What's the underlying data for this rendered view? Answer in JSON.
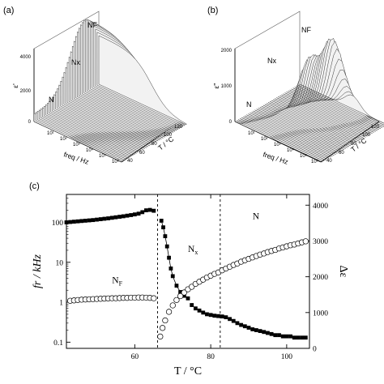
{
  "panels": [
    {
      "label": "(a)",
      "ylabel": "ε'",
      "z_ticks": [
        "0",
        "2000",
        "4000"
      ],
      "freq_axis": {
        "label": "freq / Hz",
        "ticks": [
          "10¹",
          "10²",
          "10³",
          "10⁴",
          "10⁵",
          "10⁶"
        ]
      },
      "temp_axis": {
        "label": "T / °C",
        "ticks": [
          "40",
          "60",
          "80",
          "100",
          "120"
        ]
      },
      "phase_labels": [
        "N",
        "Nx",
        "NF"
      ],
      "surface": {
        "peak": 4200,
        "valleys": 1
      }
    },
    {
      "label": "(b)",
      "ylabel": "ε''",
      "z_ticks": [
        "0",
        "1000",
        "2000"
      ],
      "freq_axis": {
        "label": "freq / Hz",
        "ticks": [
          "10¹",
          "10²",
          "10³",
          "10⁴",
          "10⁵",
          "10⁶"
        ]
      },
      "temp_axis": {
        "label": "T / °C",
        "ticks": [
          "40",
          "60",
          "80",
          "100",
          "120"
        ]
      },
      "phase_labels": [
        "N",
        "Nx",
        "NF"
      ],
      "surface": {
        "peak": 2300,
        "valleys": 2
      }
    }
  ],
  "chart_data": {
    "label": "(c)",
    "type": "scatter",
    "xlabel": "T / °C",
    "ylabel_left": "fr / kHz",
    "ylabel_right": "Δε",
    "xlim": [
      42,
      106
    ],
    "ylim_left": [
      0.07,
      500
    ],
    "yscale_left": "log",
    "ylim_right": [
      0,
      4300
    ],
    "x_ticks": [
      60,
      80,
      100
    ],
    "y_ticks_left": [
      0.1,
      1,
      10,
      100
    ],
    "y_ticks_left_labels": [
      "0.1",
      "1",
      "10",
      "100"
    ],
    "y_ticks_right": [
      0,
      1000,
      2000,
      3000,
      4000
    ],
    "phase_boundaries": [
      66,
      82.5
    ],
    "phase_labels": [
      {
        "text": "NF",
        "x": 54,
        "y_left": 3
      },
      {
        "text": "Nx",
        "x": 74,
        "y_left": 18
      },
      {
        "text": "N",
        "x": 91,
        "y_left": 120
      }
    ],
    "series": [
      {
        "axis": "left",
        "marker": "filled-square",
        "x": [
          42,
          43,
          44,
          45,
          46,
          47,
          48,
          49,
          50,
          51,
          52,
          53,
          54,
          55,
          56,
          57,
          58,
          59,
          60,
          61,
          62,
          63,
          64,
          65,
          67,
          67.5,
          68,
          68.5,
          69,
          69.5,
          70,
          71,
          72,
          73,
          74,
          75,
          76,
          77,
          78,
          79,
          80,
          81,
          82,
          83,
          84,
          85,
          86,
          87,
          88,
          89,
          90,
          91,
          92,
          93,
          94,
          95,
          96,
          97,
          98,
          99,
          100,
          101,
          102,
          103,
          104,
          105
        ],
        "y": [
          100,
          102,
          104,
          106,
          108,
          110,
          112,
          114,
          117,
          120,
          123,
          126,
          130,
          134,
          138,
          142,
          147,
          152,
          158,
          165,
          180,
          200,
          205,
          195,
          110,
          75,
          45,
          25,
          13,
          7,
          4.5,
          2.6,
          1.8,
          1.45,
          1.25,
          0.85,
          0.7,
          0.62,
          0.55,
          0.5,
          0.48,
          0.46,
          0.45,
          0.44,
          0.42,
          0.38,
          0.34,
          0.3,
          0.27,
          0.25,
          0.23,
          0.21,
          0.2,
          0.19,
          0.18,
          0.17,
          0.16,
          0.15,
          0.15,
          0.14,
          0.14,
          0.14,
          0.13,
          0.13,
          0.13,
          0.13
        ]
      },
      {
        "axis": "right",
        "marker": "open-circle",
        "x": [
          43,
          44,
          45,
          46,
          47,
          48,
          49,
          50,
          51,
          52,
          53,
          54,
          55,
          56,
          57,
          58,
          59,
          60,
          61,
          62,
          63,
          64,
          65,
          66.7,
          67.3,
          68,
          69,
          70,
          71,
          72,
          73,
          74,
          75,
          76,
          77,
          78,
          79,
          80,
          81,
          82,
          83,
          84,
          85,
          86,
          87,
          88,
          89,
          90,
          91,
          92,
          93,
          94,
          95,
          96,
          97,
          98,
          99,
          100,
          101,
          102,
          103,
          104,
          105
        ],
        "y": [
          1330,
          1340,
          1350,
          1360,
          1365,
          1370,
          1375,
          1380,
          1385,
          1390,
          1395,
          1400,
          1400,
          1405,
          1410,
          1410,
          1415,
          1415,
          1420,
          1420,
          1415,
          1410,
          1400,
          330,
          570,
          780,
          1020,
          1200,
          1350,
          1460,
          1560,
          1650,
          1720,
          1800,
          1860,
          1920,
          1980,
          2030,
          2080,
          2120,
          2180,
          2230,
          2280,
          2330,
          2370,
          2420,
          2460,
          2500,
          2540,
          2580,
          2620,
          2650,
          2690,
          2720,
          2750,
          2790,
          2820,
          2850,
          2880,
          2900,
          2930,
          2960,
          2990
        ]
      }
    ]
  }
}
